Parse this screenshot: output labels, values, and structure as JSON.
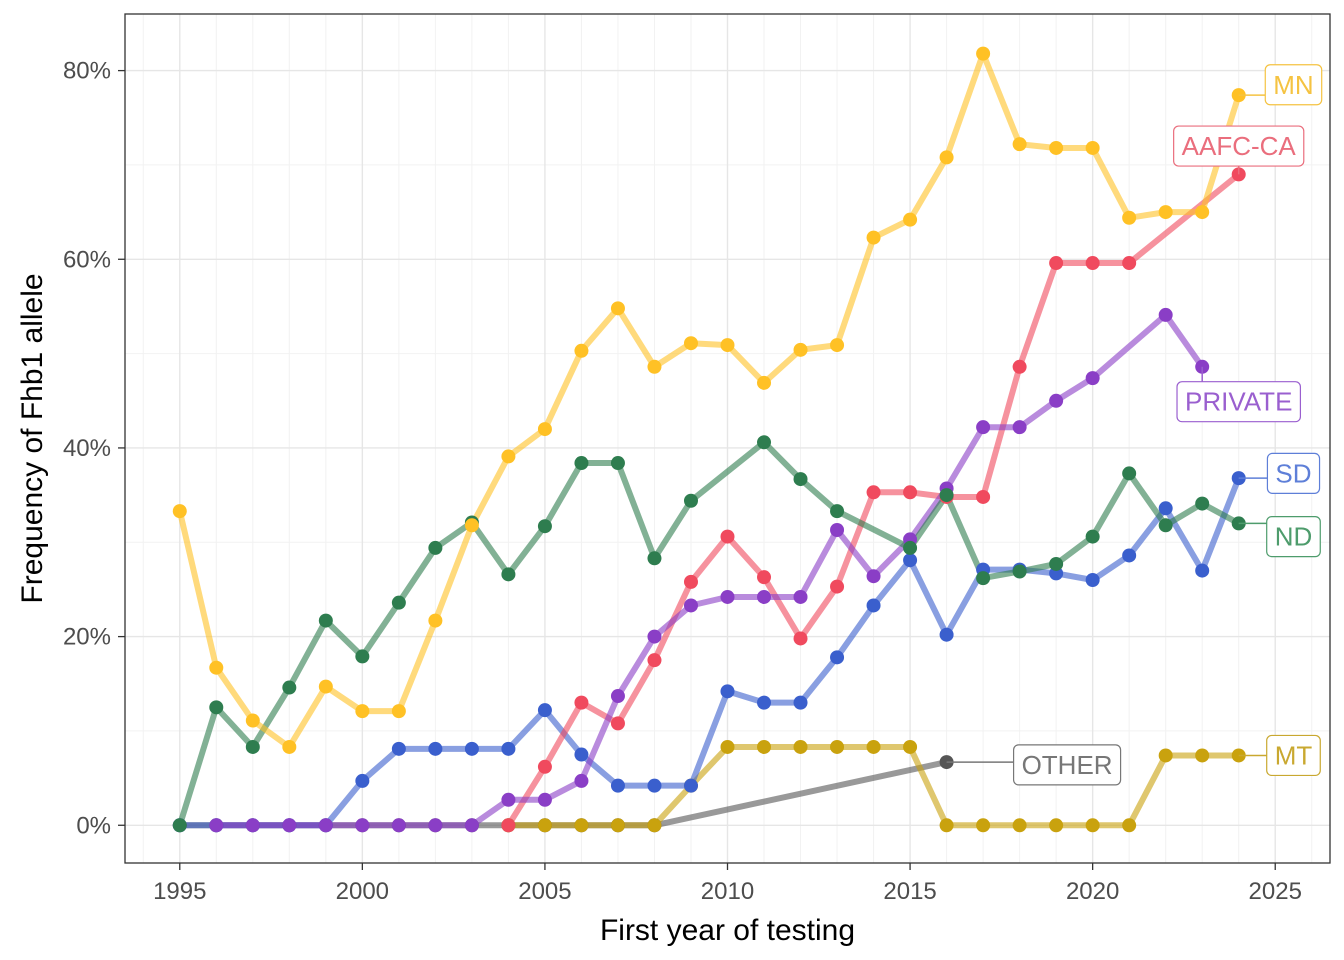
{
  "chart_data": {
    "type": "line",
    "xlabel": "First year of testing",
    "ylabel": "Frequency of Fhb1 allele",
    "xlim": [
      1993.5,
      1995,
      2025
    ],
    "x_ticks": [
      1995,
      2000,
      2005,
      2010,
      2015,
      2020,
      2025
    ],
    "ylim": [
      -0.04,
      0.86
    ],
    "y_ticks": [
      {
        "value": 0.0,
        "label": "0%"
      },
      {
        "value": 0.2,
        "label": "20%"
      },
      {
        "value": 0.4,
        "label": "40%"
      },
      {
        "value": 0.6,
        "label": "60%"
      },
      {
        "value": 0.8,
        "label": "80%"
      }
    ],
    "grid": true,
    "legend": "direct labels",
    "series": [
      {
        "name": "OTHER",
        "color": "#555555",
        "x": [
          1995,
          1996,
          1997,
          1998,
          1999,
          2000,
          2001,
          2002,
          2003,
          2004,
          2005,
          2006,
          2007,
          2008,
          2016
        ],
        "y": [
          0,
          0,
          0,
          0,
          0,
          0,
          0,
          0,
          0,
          0,
          0,
          0,
          0,
          0,
          0.067
        ]
      },
      {
        "name": "MT",
        "color": "#c9a20e",
        "x": [
          2004,
          2005,
          2006,
          2007,
          2008,
          2009,
          2010,
          2011,
          2012,
          2013,
          2014,
          2015,
          2016,
          2017,
          2018,
          2019,
          2020,
          2021,
          2022,
          2023,
          2024
        ],
        "y": [
          0,
          0,
          0,
          0,
          0,
          0.042,
          0.083,
          0.083,
          0.083,
          0.083,
          0.083,
          0.083,
          0,
          0,
          0,
          0,
          0,
          0,
          0.074,
          0.074,
          0.074
        ]
      },
      {
        "name": "SD",
        "color": "#3a5fcd",
        "x": [
          1995,
          1996,
          1997,
          1998,
          1999,
          2000,
          2001,
          2002,
          2003,
          2004,
          2005,
          2006,
          2007,
          2008,
          2009,
          2010,
          2011,
          2012,
          2013,
          2014,
          2015,
          2016,
          2017,
          2018,
          2019,
          2020,
          2021,
          2022,
          2023,
          2024
        ],
        "y": [
          0,
          0,
          0,
          0,
          0,
          0.047,
          0.081,
          0.081,
          0.081,
          0.081,
          0.122,
          0.075,
          0.042,
          0.042,
          0.042,
          0.142,
          0.13,
          0.13,
          0.178,
          0.233,
          0.281,
          0.202,
          0.271,
          0.271,
          0.267,
          0.26,
          0.286,
          0.336,
          0.27,
          0.368
        ]
      },
      {
        "name": "AAFC-CA",
        "color": "#f04a5e",
        "x": [
          2004,
          2005,
          2006,
          2007,
          2008,
          2009,
          2010,
          2011,
          2012,
          2013,
          2014,
          2015,
          2016,
          2017,
          2018,
          2019,
          2020,
          2021,
          2024
        ],
        "y": [
          0,
          0.062,
          0.13,
          0.108,
          0.175,
          0.258,
          0.306,
          0.263,
          0.198,
          0.253,
          0.353,
          0.353,
          0.348,
          0.348,
          0.486,
          0.596,
          0.596,
          0.596,
          0.69
        ]
      },
      {
        "name": "PRIVATE",
        "color": "#8a3ec6",
        "x": [
          1996,
          1997,
          1998,
          1999,
          2000,
          2001,
          2002,
          2003,
          2004,
          2005,
          2006,
          2007,
          2008,
          2009,
          2010,
          2011,
          2012,
          2013,
          2014,
          2015,
          2016,
          2017,
          2018,
          2019,
          2020,
          2022,
          2023
        ],
        "y": [
          0,
          0,
          0,
          0,
          0,
          0,
          0,
          0,
          0.027,
          0.027,
          0.047,
          0.137,
          0.2,
          0.233,
          0.242,
          0.242,
          0.242,
          0.313,
          0.264,
          0.303,
          0.357,
          0.422,
          0.422,
          0.45,
          0.474,
          0.541,
          0.486
        ]
      },
      {
        "name": "ND",
        "color": "#2e7d4f",
        "x": [
          1995,
          1996,
          1997,
          1998,
          1999,
          2000,
          2001,
          2002,
          2003,
          2004,
          2005,
          2006,
          2007,
          2008,
          2009,
          2011,
          2012,
          2013,
          2015,
          2016,
          2017,
          2018,
          2019,
          2020,
          2021,
          2022,
          2023,
          2024
        ],
        "y": [
          0,
          0.125,
          0.083,
          0.146,
          0.217,
          0.179,
          0.236,
          0.294,
          0.321,
          0.266,
          0.317,
          0.384,
          0.384,
          0.283,
          0.344,
          0.406,
          0.367,
          0.333,
          0.294,
          0.35,
          0.262,
          0.269,
          0.277,
          0.306,
          0.373,
          0.318,
          0.341,
          0.32
        ]
      },
      {
        "name": "MN",
        "color": "#ffc125",
        "x": [
          1995,
          1996,
          1997,
          1998,
          1999,
          2000,
          2001,
          2002,
          2003,
          2004,
          2005,
          2006,
          2007,
          2008,
          2009,
          2010,
          2011,
          2012,
          2013,
          2014,
          2015,
          2016,
          2017,
          2018,
          2019,
          2020,
          2021,
          2022,
          2023,
          2024
        ],
        "y": [
          0.333,
          0.167,
          0.111,
          0.083,
          0.147,
          0.121,
          0.121,
          0.217,
          0.318,
          0.391,
          0.42,
          0.503,
          0.548,
          0.486,
          0.511,
          0.509,
          0.469,
          0.504,
          0.509,
          0.623,
          0.642,
          0.708,
          0.818,
          0.722,
          0.718,
          0.718,
          0.644,
          0.65,
          0.65,
          0.774
        ]
      }
    ],
    "labels": [
      {
        "series": "MN",
        "text": "MN",
        "color": "#f5c342",
        "point": [
          2024,
          0.774
        ],
        "anchor": [
          2025.5,
          0.785
        ]
      },
      {
        "series": "AAFC-CA",
        "text": "AAFC-CA",
        "color": "#ea6e7d",
        "point": [
          2024,
          0.69
        ],
        "anchor": [
          2024.0,
          0.72
        ]
      },
      {
        "series": "PRIVATE",
        "text": "PRIVATE",
        "color": "#9a5fcf",
        "point": [
          2023,
          0.486
        ],
        "anchor": [
          2024.0,
          0.449
        ]
      },
      {
        "series": "SD",
        "text": "SD",
        "color": "#5e7fd8",
        "point": [
          2024,
          0.368
        ],
        "anchor": [
          2025.5,
          0.373
        ]
      },
      {
        "series": "ND",
        "text": "ND",
        "color": "#4e9c6c",
        "point": [
          2024,
          0.32
        ],
        "anchor": [
          2025.5,
          0.306
        ]
      },
      {
        "series": "MT",
        "text": "MT",
        "color": "#c9a830",
        "point": [
          2024,
          0.074
        ],
        "anchor": [
          2025.5,
          0.074
        ]
      },
      {
        "series": "OTHER",
        "text": "OTHER",
        "color": "#777777",
        "point": [
          2016,
          0.067
        ],
        "anchor": [
          2019.3,
          0.064
        ]
      }
    ]
  }
}
